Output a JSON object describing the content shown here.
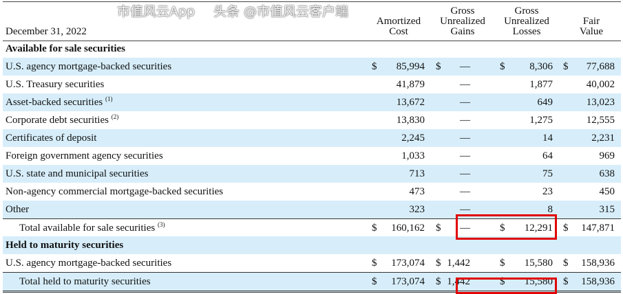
{
  "header": {
    "date_label": "December 31, 2022",
    "columns": [
      "Amortized Cost",
      "Gross Unrealized Gains",
      "Gross Unrealized Losses",
      "Fair Value"
    ]
  },
  "sections": [
    {
      "title": "Available for sale securities",
      "rows": [
        {
          "label": "U.S. agency mortgage-backed securities",
          "note": "",
          "dollar": true,
          "values": [
            "85,994",
            "—",
            "8,306",
            "77,688"
          ]
        },
        {
          "label": "U.S. Treasury securities",
          "note": "",
          "dollar": false,
          "values": [
            "41,879",
            "—",
            "1,877",
            "40,002"
          ]
        },
        {
          "label": "Asset-backed securities",
          "note": "(1)",
          "dollar": false,
          "values": [
            "13,672",
            "—",
            "649",
            "13,023"
          ]
        },
        {
          "label": "Corporate debt securities",
          "note": "(2)",
          "dollar": false,
          "values": [
            "13,830",
            "—",
            "1,275",
            "12,555"
          ]
        },
        {
          "label": "Certificates of deposit",
          "note": "",
          "dollar": false,
          "values": [
            "2,245",
            "—",
            "14",
            "2,231"
          ]
        },
        {
          "label": "Foreign government agency securities",
          "note": "",
          "dollar": false,
          "values": [
            "1,033",
            "—",
            "64",
            "969"
          ]
        },
        {
          "label": "U.S. state and municipal securities",
          "note": "",
          "dollar": false,
          "values": [
            "713",
            "—",
            "75",
            "638"
          ]
        },
        {
          "label": "Non-agency commercial mortgage-backed securities",
          "note": "",
          "dollar": false,
          "values": [
            "473",
            "—",
            "23",
            "450"
          ]
        },
        {
          "label": "Other",
          "note": "",
          "dollar": false,
          "values": [
            "323",
            "—",
            "8",
            "315"
          ]
        }
      ],
      "total": {
        "label": "Total available for sale securities",
        "note": "(3)",
        "values": [
          "160,162",
          "—",
          "12,291",
          "147,871"
        ]
      }
    },
    {
      "title": "Held to maturity securities",
      "rows": [
        {
          "label": "U.S. agency mortgage-backed securities",
          "note": "",
          "dollar": true,
          "values": [
            "173,074",
            "1,442",
            "15,580",
            "158,936"
          ]
        }
      ],
      "total": {
        "label": "Total held to maturity securities",
        "note": "",
        "values": [
          "173,074",
          "1,442",
          "15,580",
          "158,936"
        ]
      }
    }
  ],
  "currency_symbol": "$",
  "highlight_color": "#e00000",
  "watermarks": [
    "市值风云App",
    "头条 @市值风云客户端"
  ]
}
